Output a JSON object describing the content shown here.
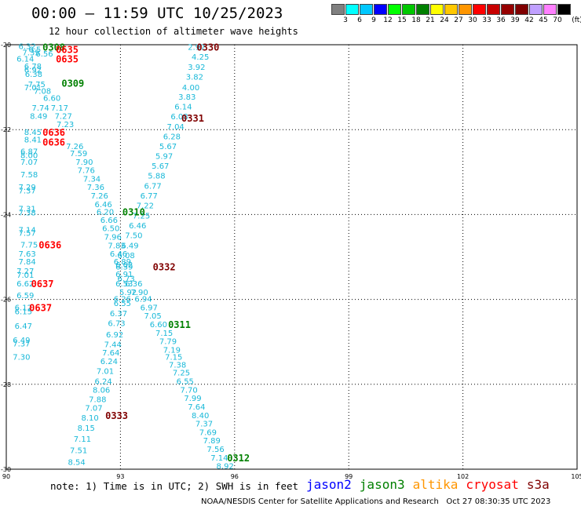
{
  "header": {
    "title": "00:00 – 11:59 UTC 10/25/2023",
    "subtitle": "12 hour collection of altimeter wave heights"
  },
  "colorbar": {
    "unit": "(ft)",
    "labels": [
      "3",
      "6",
      "9",
      "12",
      "15",
      "18",
      "21",
      "24",
      "27",
      "30",
      "33",
      "36",
      "39",
      "42",
      "45",
      "70"
    ],
    "colors": [
      "#808080",
      "#00ffff",
      "#00c8ff",
      "#0000ff",
      "#00ff00",
      "#00c800",
      "#008000",
      "#ffff00",
      "#ffc800",
      "#ff9600",
      "#ff0000",
      "#c80000",
      "#960000",
      "#800000",
      "#c0a0ff",
      "#ff80ff",
      "#000000"
    ]
  },
  "footer": {
    "note": "note: 1) Time is in UTC; 2) SWH is in feet",
    "credit": "NOAA/NESDIS Center for Satellite Applications and Research   Oct 27 08:30:35 UTC 2023"
  },
  "legend": [
    {
      "label": "jason2",
      "color": "#0000ff"
    },
    {
      "label": "jason3",
      "color": "#008000"
    },
    {
      "label": "altika",
      "color": "#ff9600"
    },
    {
      "label": "cryosat",
      "color": "#ff0000"
    },
    {
      "label": "s3a",
      "color": "#800000"
    }
  ],
  "colors": {
    "data_label": "#18b8d8",
    "grid": "#000000"
  },
  "chart_data": {
    "type": "scatter",
    "x_ticks": [
      "90",
      "93",
      "96",
      "99",
      "102",
      "105"
    ],
    "y_ticks": [
      "-20",
      "-22",
      "-24",
      "-26",
      "-28",
      "-30"
    ],
    "xlim": [
      90,
      105
    ],
    "ylim": [
      -30,
      -20
    ],
    "grid": true,
    "points": [
      {
        "lon": 90.55,
        "lat": -20.03,
        "v": "6.32"
      },
      {
        "lon": 90.75,
        "lat": -20.1,
        "v": "6.5"
      },
      {
        "lon": 90.65,
        "lat": -20.18,
        "v": "7.35"
      },
      {
        "lon": 91.0,
        "lat": -20.2,
        "v": "6.56"
      },
      {
        "lon": 90.5,
        "lat": -20.32,
        "v": "6.14"
      },
      {
        "lon": 90.7,
        "lat": -20.5,
        "v": "6.78"
      },
      {
        "lon": 90.7,
        "lat": -20.58,
        "v": "6.92"
      },
      {
        "lon": 90.72,
        "lat": -20.68,
        "v": "6.38"
      },
      {
        "lon": 90.8,
        "lat": -20.92,
        "v": "7.75"
      },
      {
        "lon": 90.7,
        "lat": -21.0,
        "v": "7.01"
      },
      {
        "lon": 90.95,
        "lat": -21.08,
        "v": "7.08"
      },
      {
        "lon": 91.2,
        "lat": -21.25,
        "v": "6.60"
      },
      {
        "lon": 90.9,
        "lat": -21.48,
        "v": "7.74"
      },
      {
        "lon": 91.4,
        "lat": -21.48,
        "v": "7.17"
      },
      {
        "lon": 90.85,
        "lat": -21.67,
        "v": "8.49"
      },
      {
        "lon": 91.5,
        "lat": -21.67,
        "v": "7.27"
      },
      {
        "lon": 91.55,
        "lat": -21.87,
        "v": "7.23"
      },
      {
        "lon": 90.7,
        "lat": -22.05,
        "v": "8.45"
      },
      {
        "lon": 90.7,
        "lat": -22.23,
        "v": "8.41"
      },
      {
        "lon": 91.8,
        "lat": -22.38,
        "v": "7.26"
      },
      {
        "lon": 90.6,
        "lat": -22.5,
        "v": "6.87"
      },
      {
        "lon": 90.6,
        "lat": -22.6,
        "v": "8.00"
      },
      {
        "lon": 91.9,
        "lat": -22.55,
        "v": "7.59"
      },
      {
        "lon": 90.6,
        "lat": -22.75,
        "v": "7.07"
      },
      {
        "lon": 92.05,
        "lat": -22.75,
        "v": "7.90"
      },
      {
        "lon": 92.1,
        "lat": -22.95,
        "v": "7.76"
      },
      {
        "lon": 90.6,
        "lat": -23.05,
        "v": "7.58"
      },
      {
        "lon": 92.25,
        "lat": -23.15,
        "v": "7.34"
      },
      {
        "lon": 90.55,
        "lat": -23.35,
        "v": "7.29"
      },
      {
        "lon": 90.55,
        "lat": -23.43,
        "v": "7.37"
      },
      {
        "lon": 92.35,
        "lat": -23.35,
        "v": "7.36"
      },
      {
        "lon": 92.45,
        "lat": -23.55,
        "v": "7.26"
      },
      {
        "lon": 92.55,
        "lat": -23.75,
        "v": "6.46"
      },
      {
        "lon": 90.55,
        "lat": -23.85,
        "v": "7.31"
      },
      {
        "lon": 90.55,
        "lat": -23.95,
        "v": "7.38"
      },
      {
        "lon": 92.6,
        "lat": -23.93,
        "v": "6.20"
      },
      {
        "lon": 92.7,
        "lat": -24.12,
        "v": "6.66"
      },
      {
        "lon": 92.75,
        "lat": -24.32,
        "v": "6.50"
      },
      {
        "lon": 90.55,
        "lat": -24.35,
        "v": "7.14"
      },
      {
        "lon": 90.55,
        "lat": -24.43,
        "v": "7.57"
      },
      {
        "lon": 92.8,
        "lat": -24.52,
        "v": "7.96"
      },
      {
        "lon": 90.6,
        "lat": -24.7,
        "v": "7.75"
      },
      {
        "lon": 92.9,
        "lat": -24.72,
        "v": "7.83"
      },
      {
        "lon": 90.55,
        "lat": -24.92,
        "v": "7.63"
      },
      {
        "lon": 92.95,
        "lat": -24.92,
        "v": "6.46"
      },
      {
        "lon": 90.55,
        "lat": -25.1,
        "v": "7.84"
      },
      {
        "lon": 93.05,
        "lat": -25.1,
        "v": "6.89"
      },
      {
        "lon": 93.1,
        "lat": -25.22,
        "v": "6.39"
      },
      {
        "lon": 90.5,
        "lat": -25.32,
        "v": "7.27"
      },
      {
        "lon": 90.5,
        "lat": -25.42,
        "v": "7.01"
      },
      {
        "lon": 93.1,
        "lat": -25.4,
        "v": "6.91"
      },
      {
        "lon": 93.15,
        "lat": -25.5,
        "v": "6.73"
      },
      {
        "lon": 90.5,
        "lat": -25.62,
        "v": "6.62"
      },
      {
        "lon": 93.1,
        "lat": -25.62,
        "v": "6.53"
      },
      {
        "lon": 93.35,
        "lat": -25.62,
        "v": "6.36"
      },
      {
        "lon": 93.2,
        "lat": -25.82,
        "v": "5.92"
      },
      {
        "lon": 93.5,
        "lat": -25.82,
        "v": "7.90"
      },
      {
        "lon": 90.5,
        "lat": -25.9,
        "v": "6.59"
      },
      {
        "lon": 93.05,
        "lat": -25.98,
        "v": "6.26"
      },
      {
        "lon": 93.6,
        "lat": -25.98,
        "v": "6.94"
      },
      {
        "lon": 93.05,
        "lat": -26.08,
        "v": "6.55"
      },
      {
        "lon": 93.75,
        "lat": -26.18,
        "v": "6.97"
      },
      {
        "lon": 90.45,
        "lat": -26.18,
        "v": "6.12"
      },
      {
        "lon": 90.45,
        "lat": -26.28,
        "v": "6.15"
      },
      {
        "lon": 92.95,
        "lat": -26.32,
        "v": "6.37"
      },
      {
        "lon": 93.85,
        "lat": -26.38,
        "v": "7.05"
      },
      {
        "lon": 92.9,
        "lat": -26.55,
        "v": "6.73"
      },
      {
        "lon": 94.0,
        "lat": -26.58,
        "v": "6.60"
      },
      {
        "lon": 90.45,
        "lat": -26.62,
        "v": "6.47"
      },
      {
        "lon": 92.85,
        "lat": -26.82,
        "v": "6.92"
      },
      {
        "lon": 94.15,
        "lat": -26.78,
        "v": "7.15"
      },
      {
        "lon": 90.4,
        "lat": -26.95,
        "v": "6.49"
      },
      {
        "lon": 90.4,
        "lat": -27.03,
        "v": "7.37"
      },
      {
        "lon": 92.8,
        "lat": -27.05,
        "v": "7.44"
      },
      {
        "lon": 94.25,
        "lat": -26.98,
        "v": "7.79"
      },
      {
        "lon": 94.35,
        "lat": -27.18,
        "v": "7.19"
      },
      {
        "lon": 92.75,
        "lat": -27.25,
        "v": "7.64"
      },
      {
        "lon": 94.4,
        "lat": -27.35,
        "v": "7.15"
      },
      {
        "lon": 90.4,
        "lat": -27.35,
        "v": "7.30"
      },
      {
        "lon": 92.7,
        "lat": -27.45,
        "v": "6.24"
      },
      {
        "lon": 94.5,
        "lat": -27.53,
        "v": "7.38"
      },
      {
        "lon": 92.6,
        "lat": -27.68,
        "v": "7.01"
      },
      {
        "lon": 94.6,
        "lat": -27.72,
        "v": "7.25"
      },
      {
        "lon": 92.55,
        "lat": -27.92,
        "v": "6.24"
      },
      {
        "lon": 94.7,
        "lat": -27.92,
        "v": "6.55"
      },
      {
        "lon": 92.5,
        "lat": -28.12,
        "v": "8.06"
      },
      {
        "lon": 94.8,
        "lat": -28.12,
        "v": "7.70"
      },
      {
        "lon": 92.4,
        "lat": -28.35,
        "v": "7.88"
      },
      {
        "lon": 94.9,
        "lat": -28.32,
        "v": "7.99"
      },
      {
        "lon": 95.0,
        "lat": -28.52,
        "v": "7.64"
      },
      {
        "lon": 92.3,
        "lat": -28.55,
        "v": "7.07"
      },
      {
        "lon": 95.1,
        "lat": -28.72,
        "v": "8.40"
      },
      {
        "lon": 92.2,
        "lat": -28.78,
        "v": "8.10"
      },
      {
        "lon": 95.2,
        "lat": -28.92,
        "v": "7.37"
      },
      {
        "lon": 92.1,
        "lat": -29.02,
        "v": "8.15"
      },
      {
        "lon": 95.3,
        "lat": -29.12,
        "v": "7.69"
      },
      {
        "lon": 92.0,
        "lat": -29.28,
        "v": "7.11"
      },
      {
        "lon": 95.4,
        "lat": -29.32,
        "v": "7.89"
      },
      {
        "lon": 95.5,
        "lat": -29.52,
        "v": "7.56"
      },
      {
        "lon": 91.9,
        "lat": -29.55,
        "v": "7.51"
      },
      {
        "lon": 95.6,
        "lat": -29.72,
        "v": "7.14"
      },
      {
        "lon": 91.85,
        "lat": -29.82,
        "v": "8.54"
      },
      {
        "lon": 95.75,
        "lat": -29.92,
        "v": "8.92"
      },
      {
        "lon": 95.0,
        "lat": -20.05,
        "v": "2.97"
      },
      {
        "lon": 95.1,
        "lat": -20.28,
        "v": "4.25"
      },
      {
        "lon": 95.0,
        "lat": -20.52,
        "v": "3.92"
      },
      {
        "lon": 94.95,
        "lat": -20.75,
        "v": "3.82"
      },
      {
        "lon": 94.85,
        "lat": -21.0,
        "v": "4.00"
      },
      {
        "lon": 94.75,
        "lat": -21.22,
        "v": "3.83"
      },
      {
        "lon": 94.65,
        "lat": -21.45,
        "v": "6.14"
      },
      {
        "lon": 94.55,
        "lat": -21.68,
        "v": "6.08"
      },
      {
        "lon": 94.45,
        "lat": -21.92,
        "v": "7.04"
      },
      {
        "lon": 94.35,
        "lat": -22.15,
        "v": "6.28"
      },
      {
        "lon": 94.25,
        "lat": -22.38,
        "v": "5.67"
      },
      {
        "lon": 94.15,
        "lat": -22.62,
        "v": "5.97"
      },
      {
        "lon": 94.05,
        "lat": -22.85,
        "v": "5.67"
      },
      {
        "lon": 93.95,
        "lat": -23.08,
        "v": "5.88"
      },
      {
        "lon": 93.85,
        "lat": -23.32,
        "v": "6.77"
      },
      {
        "lon": 93.75,
        "lat": -23.55,
        "v": "6.77"
      },
      {
        "lon": 93.65,
        "lat": -23.78,
        "v": "7.22"
      },
      {
        "lon": 93.55,
        "lat": -24.02,
        "v": "7.25"
      },
      {
        "lon": 93.45,
        "lat": -24.25,
        "v": "6.46"
      },
      {
        "lon": 93.35,
        "lat": -24.48,
        "v": "7.50"
      },
      {
        "lon": 93.25,
        "lat": -24.72,
        "v": "6.49"
      },
      {
        "lon": 93.15,
        "lat": -24.95,
        "v": "6.08"
      },
      {
        "lon": 93.1,
        "lat": -25.18,
        "v": "6.02"
      }
    ],
    "passes": [
      {
        "label": "0308",
        "lon": 91.25,
        "lat": -20.05,
        "sat": "jason3",
        "color": "#008000"
      },
      {
        "label": "0635",
        "lon": 91.6,
        "lat": -20.1,
        "sat": "cryosat",
        "color": "#ff0000"
      },
      {
        "label": "0635",
        "lon": 91.6,
        "lat": -20.32,
        "sat": "cryosat",
        "color": "#ff0000"
      },
      {
        "label": "0330",
        "lon": 95.3,
        "lat": -20.05,
        "sat": "s3a",
        "color": "#800000"
      },
      {
        "label": "0309",
        "lon": 91.75,
        "lat": -20.9,
        "sat": "jason3",
        "color": "#008000"
      },
      {
        "label": "0331",
        "lon": 94.9,
        "lat": -21.72,
        "sat": "s3a",
        "color": "#800000"
      },
      {
        "label": "0636",
        "lon": 91.25,
        "lat": -22.05,
        "sat": "cryosat",
        "color": "#ff0000"
      },
      {
        "label": "0636",
        "lon": 91.25,
        "lat": -22.28,
        "sat": "cryosat",
        "color": "#ff0000"
      },
      {
        "label": "0310",
        "lon": 93.35,
        "lat": -23.93,
        "sat": "jason3",
        "color": "#008000"
      },
      {
        "label": "0636",
        "lon": 91.15,
        "lat": -24.7,
        "sat": "cryosat",
        "color": "#ff0000"
      },
      {
        "label": "0332",
        "lon": 94.15,
        "lat": -25.22,
        "sat": "s3a",
        "color": "#800000"
      },
      {
        "label": "0637",
        "lon": 90.95,
        "lat": -25.62,
        "sat": "cryosat",
        "color": "#ff0000"
      },
      {
        "label": "0637",
        "lon": 90.9,
        "lat": -26.18,
        "sat": "cryosat",
        "color": "#ff0000"
      },
      {
        "label": "0311",
        "lon": 94.55,
        "lat": -26.58,
        "sat": "jason3",
        "color": "#008000"
      },
      {
        "label": "0333",
        "lon": 92.9,
        "lat": -28.72,
        "sat": "s3a",
        "color": "#800000"
      },
      {
        "label": "0312",
        "lon": 96.1,
        "lat": -29.72,
        "sat": "jason3",
        "color": "#008000"
      }
    ]
  }
}
